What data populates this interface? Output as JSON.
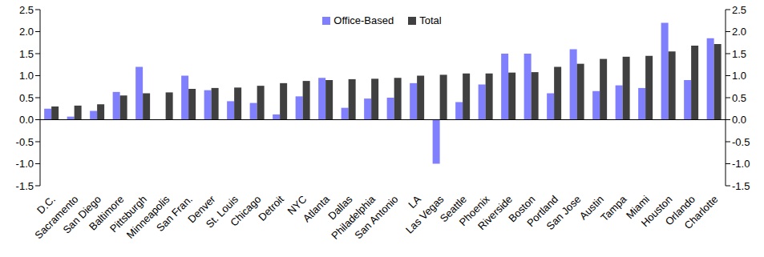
{
  "chart_data": {
    "type": "bar",
    "categories": [
      "D.C.",
      "Sacramento",
      "San Diego",
      "Baltimore",
      "Pittsburgh",
      "Minneapolis",
      "San Fran.",
      "Denver",
      "St. Louis",
      "Chicago",
      "Detroit",
      "NYC",
      "Atlanta",
      "Dallas",
      "Philadelphia",
      "San Antonio",
      "LA",
      "Las Vegas",
      "Seattle",
      "Phoenix",
      "Riverside",
      "Boston",
      "Portland",
      "San Jose",
      "Austin",
      "Tampa",
      "Miami",
      "Houston",
      "Orlando",
      "Charlotte"
    ],
    "series": [
      {
        "name": "Office-Based",
        "color": "#8080ff",
        "values": [
          0.25,
          0.07,
          0.2,
          0.63,
          1.2,
          0,
          1.0,
          0.67,
          0.42,
          0.38,
          0.12,
          0.53,
          0.95,
          0.27,
          0.48,
          0.5,
          0.83,
          -1.0,
          0.4,
          0.8,
          1.5,
          1.5,
          0.6,
          1.6,
          0.65,
          0.78,
          0.72,
          2.2,
          0.9,
          1.85
        ]
      },
      {
        "name": "Total",
        "color": "#404040",
        "values": [
          0.3,
          0.32,
          0.35,
          0.55,
          0.6,
          0.62,
          0.7,
          0.72,
          0.73,
          0.77,
          0.83,
          0.88,
          0.9,
          0.92,
          0.93,
          0.95,
          1.0,
          1.02,
          1.05,
          1.05,
          1.07,
          1.08,
          1.2,
          1.27,
          1.38,
          1.43,
          1.45,
          1.55,
          1.68,
          1.72
        ]
      }
    ],
    "ylim": [
      -1.5,
      2.5
    ],
    "yticks": [
      -1.5,
      {
        "value": -1,
        "label": "-1.0"
      },
      -0.5,
      {
        "value": 0,
        "label": "0.0"
      },
      0.5,
      {
        "value": 1,
        "label": "1.0"
      },
      1.5,
      {
        "value": 2,
        "label": "2.0"
      },
      2.5
    ],
    "y2lim": [
      -1.5,
      2.5
    ],
    "y2ticks": [
      -1.5,
      {
        "value": -1,
        "label": "-1.0"
      },
      -0.5,
      {
        "value": 0,
        "label": "0.0"
      },
      0.5,
      {
        "value": 1,
        "label": "1.0"
      },
      1.5,
      {
        "value": 2,
        "label": "2.0"
      },
      2.5
    ],
    "legend": "top",
    "grid": false
  }
}
